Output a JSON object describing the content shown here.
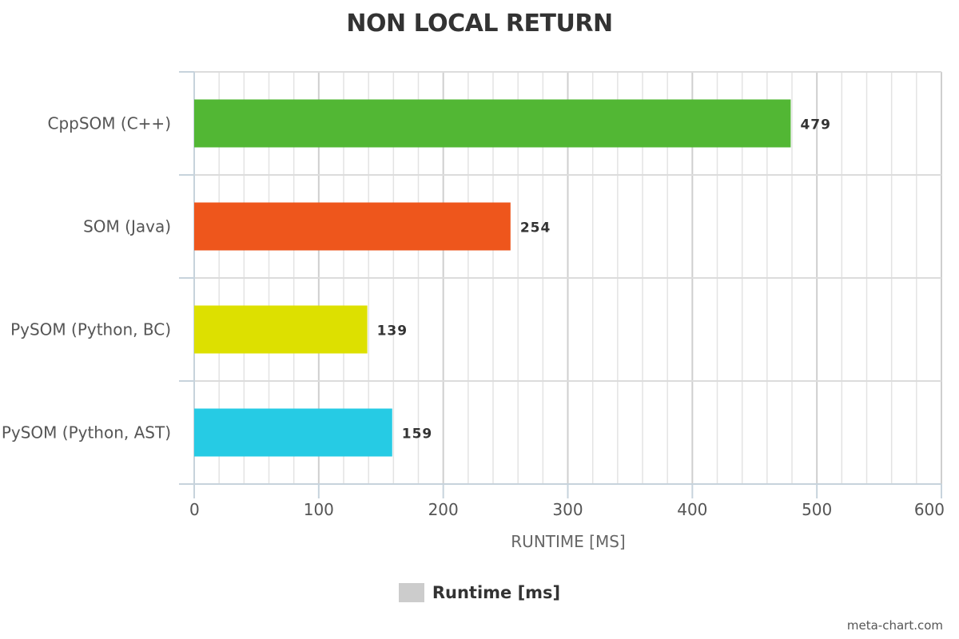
{
  "chart_data": {
    "type": "bar",
    "orientation": "horizontal",
    "title": "NON LOCAL RETURN",
    "xlabel": "RUNTIME [MS]",
    "ylabel": "",
    "categories": [
      "CppSOM (C++)",
      "SOM (Java)",
      "PySOM (Python, BC)",
      "PySOM (Python, AST)"
    ],
    "values": [
      479,
      254,
      139,
      159
    ],
    "value_labels": [
      "479",
      "254",
      "139",
      "159"
    ],
    "bar_colors": [
      "#52b734",
      "#ee561c",
      "#dde000",
      "#26cbe4"
    ],
    "xlim": [
      0,
      600
    ],
    "x_ticks": [
      "0",
      "100",
      "200",
      "300",
      "400",
      "500",
      "600"
    ],
    "grid": true,
    "legend": {
      "position": "bottom-center",
      "label": "Runtime [ms]",
      "color": "#cccccc"
    }
  },
  "watermark": "meta-chart.com"
}
